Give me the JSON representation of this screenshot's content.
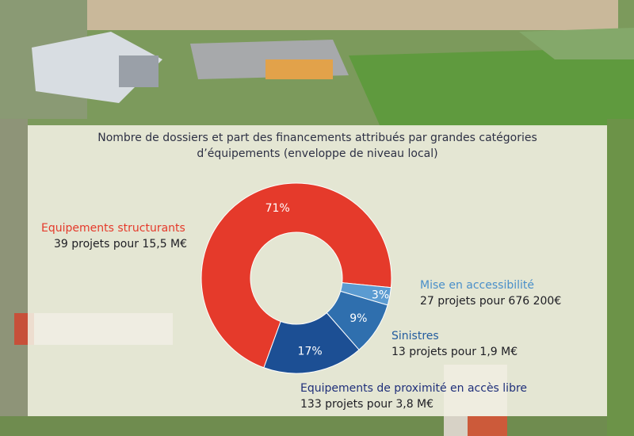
{
  "title_lines": [
    "Nombre de dossiers et part des financements attribués par grandes catégories",
    "d’équipements (enveloppe de niveau local)"
  ],
  "chart_data": {
    "type": "pie",
    "variant": "donut",
    "title": "Nombre de dossiers et part des financements attribués par grandes catégories d’équipements (enveloppe de niveau local)",
    "slices": [
      {
        "label": "Equipements structurants",
        "detail": "39 projets pour 15,5 M€",
        "value": 71,
        "value_label": "71%",
        "color": "#e53a2b",
        "label_color": "#e53a2b"
      },
      {
        "label": "Mise en accessibilité",
        "detail": "27 projets pour 676 200€",
        "value": 3,
        "value_label": "3%",
        "color": "#5b9bd1",
        "label_color": "#4a8fc9"
      },
      {
        "label": "Sinistres",
        "detail": "13 projets pour 1,9 M€",
        "value": 9,
        "value_label": "9%",
        "color": "#2f6fae",
        "label_color": "#235c9e"
      },
      {
        "label": "Equipements de proximité en accès libre",
        "detail": "133 projets pour 3,8 M€",
        "value": 17,
        "value_label": "17%",
        "color": "#1c4f94",
        "label_color": "#1f2f7a"
      }
    ]
  }
}
